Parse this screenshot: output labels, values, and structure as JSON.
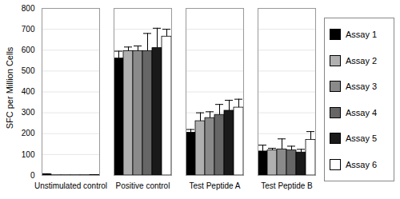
{
  "chart_data": {
    "type": "bar",
    "y_label": "SFC per Million Cells",
    "categories": [
      "Unstimulated control",
      "Positive control",
      "Test Peptide A",
      "Test Peptide B"
    ],
    "series": [
      {
        "name": "Assay 1",
        "color": "#000000",
        "values": [
          5,
          560,
          205,
          115
        ],
        "errors": [
          3,
          35,
          15,
          30
        ]
      },
      {
        "name": "Assay 2",
        "color": "#b0b0b0",
        "values": [
          1,
          595,
          260,
          120
        ],
        "errors": [
          0,
          20,
          40,
          10
        ]
      },
      {
        "name": "Assay 3",
        "color": "#8a8a8a",
        "values": [
          1,
          595,
          275,
          125
        ],
        "errors": [
          0,
          25,
          30,
          50
        ]
      },
      {
        "name": "Assay 4",
        "color": "#666666",
        "values": [
          1,
          595,
          290,
          120
        ],
        "errors": [
          0,
          85,
          50,
          20
        ]
      },
      {
        "name": "Assay 5",
        "color": "#1a1a1a",
        "values": [
          1,
          610,
          310,
          110
        ],
        "errors": [
          0,
          95,
          50,
          15
        ]
      },
      {
        "name": "Assay 6",
        "color": "#ffffff",
        "values": [
          2,
          665,
          325,
          170
        ],
        "errors": [
          1,
          35,
          40,
          40
        ]
      }
    ],
    "ylim": [
      0,
      800
    ],
    "yticks": [
      0,
      100,
      200,
      300,
      400,
      500,
      600,
      700,
      800
    ],
    "grid": true,
    "legend": "right"
  }
}
